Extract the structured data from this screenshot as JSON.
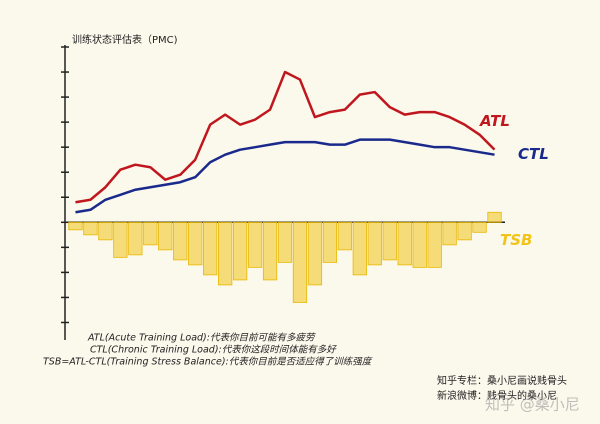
{
  "chart_data": {
    "type": "line-bar",
    "title": "训练状态评估表（PMC)",
    "ylim": [
      -4.5,
      7
    ],
    "yticks": [
      -4,
      -3,
      -2,
      -1,
      0,
      1,
      2,
      3,
      4,
      5,
      6,
      7
    ],
    "series": [
      {
        "name": "ATL",
        "color": "#c0171e",
        "kind": "line",
        "values": [
          0.8,
          0.9,
          1.4,
          2.1,
          2.3,
          2.2,
          1.7,
          1.9,
          2.5,
          3.9,
          4.3,
          3.9,
          4.1,
          4.5,
          6.0,
          5.7,
          4.2,
          4.4,
          4.5,
          5.1,
          5.2,
          4.6,
          4.3,
          4.4,
          4.4,
          4.2,
          3.9,
          3.5,
          2.9
        ]
      },
      {
        "name": "CTL",
        "color": "#1a2a8c",
        "kind": "line",
        "values": [
          0.4,
          0.5,
          0.9,
          1.1,
          1.3,
          1.4,
          1.5,
          1.6,
          1.8,
          2.4,
          2.7,
          2.9,
          3.0,
          3.1,
          3.2,
          3.2,
          3.2,
          3.1,
          3.1,
          3.3,
          3.3,
          3.3,
          3.2,
          3.1,
          3.0,
          3.0,
          2.9,
          2.8,
          2.7
        ]
      },
      {
        "name": "TSB",
        "color": "#f0c419",
        "kind": "bar",
        "values": [
          -0.3,
          -0.5,
          -0.7,
          -1.4,
          -1.3,
          -0.9,
          -1.1,
          -1.5,
          -1.7,
          -2.1,
          -2.5,
          -2.3,
          -1.8,
          -2.3,
          -1.6,
          -3.2,
          -2.5,
          -1.6,
          -1.1,
          -2.1,
          -1.7,
          -1.5,
          -1.7,
          -1.8,
          -1.8,
          -0.9,
          -0.7,
          -0.4,
          0.4
        ]
      }
    ],
    "notes": [
      "ATL(Acute Training Load):代表你目前可能有多疲劳",
      "CTL(Chronic Training Load):代表你这段时间体能有多好",
      "TSB=ATL-CTL(Training Stress Balance):代表你目前是否适应得了训练强度"
    ],
    "credits": [
      "知乎专栏：桑小尼画说贱骨头",
      "新浪微博：贱骨头的桑小尼"
    ],
    "watermark": "知乎 @桑小尼"
  }
}
